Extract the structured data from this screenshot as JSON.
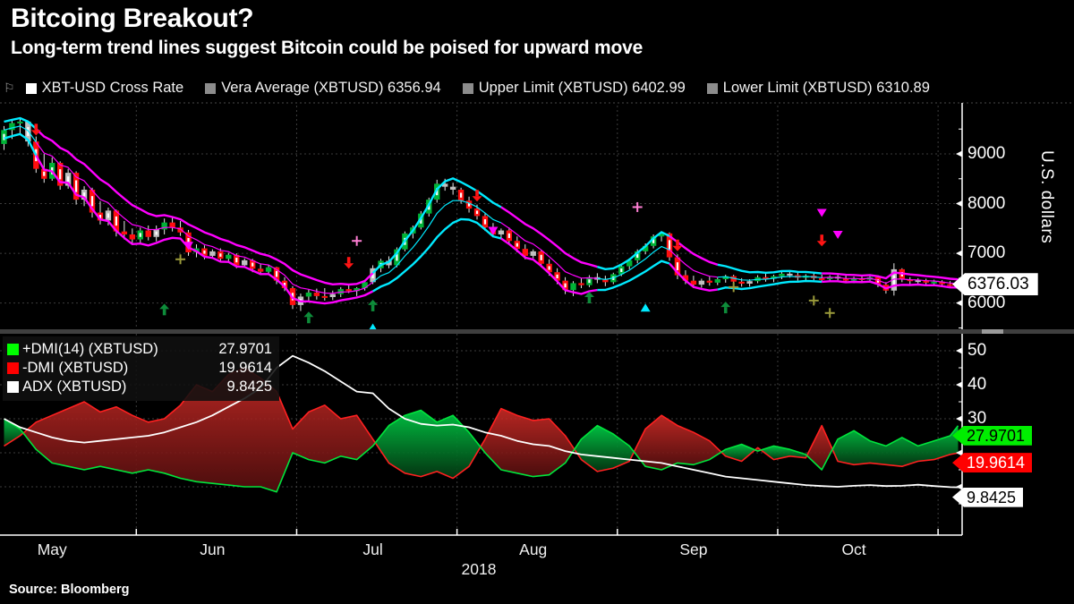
{
  "header": {
    "title": "Bitcoing Breakout?",
    "subtitle": "Long-term trend lines suggest Bitcoin could be poised for upward move"
  },
  "legend_top": {
    "items": [
      {
        "label": "XBT-USD Cross Rate",
        "swatch": "#ffffff"
      },
      {
        "label": "Vera Average (XBTUSD) 6356.94",
        "swatch": "#8c8c8c"
      },
      {
        "label": "Upper Limit (XBTUSD) 6402.99",
        "swatch": "#8c8c8c"
      },
      {
        "label": "Lower Limit (XBTUSD) 6310.89",
        "swatch": "#8c8c8c"
      }
    ]
  },
  "main_axis": {
    "label": "U.S. dollars",
    "last_price": "6376.03",
    "last_price_value": 6376.03
  },
  "lower_legend": {
    "rows": [
      {
        "label": "+DMI(14) (XBTUSD)",
        "value": "27.9701",
        "swatch": "#00ff00"
      },
      {
        "label": "-DMI (XBTUSD)",
        "value": "19.9614",
        "swatch": "#ff0000"
      },
      {
        "label": "ADX (XBTUSD)",
        "value": "9.8425",
        "swatch": "#ffffff"
      }
    ]
  },
  "lower_axis": {
    "badges": [
      {
        "text": "27.9701",
        "value": 27.9701,
        "bg": "#00ee00",
        "fg": "#000000"
      },
      {
        "text": "19.9614",
        "value": 19.9614,
        "bg": "#ff0000",
        "fg": "#ffffff"
      },
      {
        "text": "9.8425",
        "value": 9.8425,
        "bg": "#ffffff",
        "fg": "#000000"
      }
    ]
  },
  "x_axis": {
    "year": "2018"
  },
  "source": "Source:  Bloomberg",
  "chart_data": {
    "type": "candlestick+dmi",
    "main": {
      "ylim": [
        5470,
        9970
      ],
      "gridlines": [
        6000,
        7000,
        8000,
        9000
      ],
      "tick_labels": [
        9000,
        8000,
        7000,
        6000
      ],
      "minor_ticks": [
        9500,
        8500,
        7500,
        6500,
        5500
      ],
      "up_color": "#00b336",
      "down_color": "#ff0f0f",
      "neutral_color": "#c0c0c0",
      "candles": [
        [
          9200,
          9560,
          9080,
          9480
        ],
        [
          9480,
          9700,
          9300,
          9620
        ],
        [
          9620,
          9720,
          9380,
          9650
        ],
        [
          9650,
          9660,
          9150,
          9250
        ],
        [
          9250,
          9350,
          8620,
          8700
        ],
        [
          8700,
          9000,
          8420,
          8500
        ],
        [
          8500,
          8930,
          8460,
          8820
        ],
        [
          8820,
          8850,
          8280,
          8360
        ],
        [
          8360,
          8700,
          8300,
          8620
        ],
        [
          8620,
          8650,
          7980,
          8080
        ],
        [
          8080,
          8350,
          7950,
          8280
        ],
        [
          8280,
          8320,
          7720,
          7820
        ],
        [
          7820,
          8050,
          7580,
          7660
        ],
        [
          7660,
          7920,
          7560,
          7860
        ],
        [
          7860,
          7880,
          7340,
          7440
        ],
        [
          7440,
          7650,
          7280,
          7380
        ],
        [
          7380,
          7500,
          7200,
          7280
        ],
        [
          7280,
          7520,
          7180,
          7460
        ],
        [
          7460,
          7560,
          7260,
          7330
        ],
        [
          7330,
          7560,
          7240,
          7480
        ],
        [
          7480,
          7700,
          7380,
          7620
        ],
        [
          7620,
          7720,
          7440,
          7520
        ],
        [
          7520,
          7650,
          7350,
          7420
        ],
        [
          7420,
          7470,
          6950,
          7020
        ],
        [
          7020,
          7180,
          6920,
          7100
        ],
        [
          7100,
          7160,
          6880,
          6950
        ],
        [
          6950,
          7080,
          6900,
          7040
        ],
        [
          7040,
          7100,
          6820,
          6890
        ],
        [
          6890,
          7010,
          6840,
          6970
        ],
        [
          6970,
          7000,
          6700,
          6760
        ],
        [
          6760,
          6900,
          6710,
          6860
        ],
        [
          6860,
          6890,
          6620,
          6690
        ],
        [
          6690,
          6780,
          6560,
          6630
        ],
        [
          6630,
          6760,
          6590,
          6720
        ],
        [
          6720,
          6730,
          6380,
          6450
        ],
        [
          6450,
          6520,
          6240,
          6300
        ],
        [
          6300,
          6340,
          5880,
          5960
        ],
        [
          5960,
          6190,
          5840,
          6130
        ],
        [
          6130,
          6270,
          6030,
          6210
        ],
        [
          6210,
          6290,
          6070,
          6140
        ],
        [
          6140,
          6300,
          6050,
          6120
        ],
        [
          6120,
          6250,
          6060,
          6180
        ],
        [
          6180,
          6320,
          6120,
          6280
        ],
        [
          6280,
          6380,
          6200,
          6240
        ],
        [
          6240,
          6320,
          6140,
          6300
        ],
        [
          6300,
          6450,
          6250,
          6420
        ],
        [
          6420,
          6760,
          6380,
          6700
        ],
        [
          6700,
          6890,
          6620,
          6850
        ],
        [
          6850,
          6940,
          6700,
          6760
        ],
        [
          6760,
          7120,
          6720,
          7080
        ],
        [
          7080,
          7440,
          7040,
          7400
        ],
        [
          7400,
          7560,
          7300,
          7520
        ],
        [
          7520,
          7850,
          7480,
          7800
        ],
        [
          7800,
          8120,
          7740,
          8080
        ],
        [
          8080,
          8480,
          8020,
          8400
        ],
        [
          8400,
          8500,
          8260,
          8340
        ],
        [
          8340,
          8420,
          8180,
          8280
        ],
        [
          8280,
          8320,
          8000,
          8060
        ],
        [
          8060,
          8140,
          7820,
          7900
        ],
        [
          7900,
          7980,
          7680,
          7750
        ],
        [
          7750,
          7820,
          7450,
          7520
        ],
        [
          7520,
          7610,
          7320,
          7380
        ],
        [
          7380,
          7500,
          7300,
          7460
        ],
        [
          7460,
          7520,
          7180,
          7250
        ],
        [
          7250,
          7340,
          7020,
          7090
        ],
        [
          7090,
          7180,
          6880,
          6950
        ],
        [
          6950,
          7080,
          6900,
          7040
        ],
        [
          7040,
          7060,
          6720,
          6790
        ],
        [
          6790,
          6880,
          6550,
          6620
        ],
        [
          6620,
          6700,
          6380,
          6450
        ],
        [
          6450,
          6520,
          6180,
          6260
        ],
        [
          6260,
          6440,
          6140,
          6400
        ],
        [
          6400,
          6500,
          6300,
          6360
        ],
        [
          6360,
          6560,
          6320,
          6520
        ],
        [
          6520,
          6600,
          6400,
          6470
        ],
        [
          6470,
          6550,
          6340,
          6420
        ],
        [
          6420,
          6610,
          6380,
          6580
        ],
        [
          6580,
          6780,
          6540,
          6740
        ],
        [
          6740,
          6900,
          6680,
          6860
        ],
        [
          6860,
          7080,
          6800,
          7040
        ],
        [
          7040,
          7200,
          6980,
          7150
        ],
        [
          7150,
          7380,
          7100,
          7340
        ],
        [
          7340,
          7440,
          7240,
          7400
        ],
        [
          7400,
          7420,
          6850,
          6920
        ],
        [
          6920,
          6980,
          6480,
          6560
        ],
        [
          6560,
          6660,
          6380,
          6450
        ],
        [
          6450,
          6550,
          6300,
          6370
        ],
        [
          6370,
          6490,
          6310,
          6450
        ],
        [
          6450,
          6530,
          6350,
          6410
        ],
        [
          6410,
          6510,
          6360,
          6480
        ],
        [
          6480,
          6570,
          6410,
          6540
        ],
        [
          6540,
          6570,
          6380,
          6430
        ],
        [
          6430,
          6500,
          6330,
          6390
        ],
        [
          6390,
          6480,
          6330,
          6440
        ],
        [
          6440,
          6560,
          6400,
          6520
        ],
        [
          6520,
          6590,
          6430,
          6490
        ],
        [
          6490,
          6570,
          6420,
          6540
        ],
        [
          6540,
          6630,
          6480,
          6590
        ],
        [
          6590,
          6650,
          6510,
          6560
        ],
        [
          6560,
          6620,
          6450,
          6510
        ],
        [
          6510,
          6580,
          6440,
          6550
        ],
        [
          6550,
          6600,
          6460,
          6500
        ],
        [
          6500,
          6570,
          6430,
          6480
        ],
        [
          6480,
          6560,
          6420,
          6530
        ],
        [
          6530,
          6580,
          6460,
          6500
        ],
        [
          6500,
          6550,
          6410,
          6450
        ],
        [
          6450,
          6530,
          6400,
          6500
        ],
        [
          6500,
          6540,
          6420,
          6470
        ],
        [
          6470,
          6550,
          6430,
          6520
        ],
        [
          6520,
          6560,
          6320,
          6370
        ],
        [
          6370,
          6420,
          6190,
          6250
        ],
        [
          6250,
          6800,
          6150,
          6680
        ],
        [
          6680,
          6700,
          6420,
          6480
        ],
        [
          6480,
          6520,
          6380,
          6440
        ],
        [
          6440,
          6500,
          6390,
          6460
        ],
        [
          6460,
          6490,
          6370,
          6410
        ],
        [
          6410,
          6470,
          6350,
          6430
        ],
        [
          6430,
          6460,
          6340,
          6380
        ],
        [
          6380,
          6440,
          6300,
          6350
        ],
        [
          6350,
          6420,
          6310,
          6376
        ]
      ],
      "gray_indices": [
        3,
        8,
        10,
        13,
        19,
        26,
        30,
        37,
        41,
        46,
        48,
        55,
        56,
        62,
        66,
        74,
        87,
        93,
        98,
        104,
        111,
        114
      ],
      "band": {
        "magenta": "#ff00ff",
        "cyan": "#00eaff",
        "segments": [
          [
            0,
            3,
            "#00eaff"
          ],
          [
            4,
            45,
            "#ff00ff"
          ],
          [
            46,
            61,
            "#00eaff"
          ],
          [
            62,
            73,
            "#ff00ff"
          ],
          [
            74,
            82,
            "#00eaff"
          ],
          [
            83,
            88,
            "#ff00ff"
          ],
          [
            89,
            101,
            "#00eaff"
          ],
          [
            102,
            119,
            "#ff00ff"
          ]
        ]
      },
      "markers": {
        "arrow_down": {
          "color": "#ff1414",
          "points": [
            [
              4,
              9480
            ],
            [
              43,
              6800
            ],
            [
              59,
              8150
            ],
            [
              84,
              7150
            ],
            [
              102,
              7250
            ]
          ]
        },
        "arrow_up": {
          "color": "#0e8c3a",
          "points": [
            [
              20,
              5880
            ],
            [
              38,
              5720
            ],
            [
              46,
              5960
            ],
            [
              73,
              6120
            ],
            [
              90,
              5920
            ]
          ]
        },
        "triangle_down": {
          "color": "#ff00ff",
          "points": [
            [
              23,
              7160
            ],
            [
              61,
              7460
            ],
            [
              102,
              7820
            ],
            [
              104,
              7380
            ]
          ]
        },
        "triangle_up": {
          "color": "#00eaff",
          "points": [
            [
              46,
              5500
            ],
            [
              80,
              5900
            ]
          ]
        },
        "plus_olive": {
          "color": "#9a9a3a",
          "points": [
            [
              22,
              6880
            ],
            [
              91,
              6320
            ],
            [
              101,
              6050
            ],
            [
              103,
              5800
            ]
          ]
        },
        "plus_pink": {
          "color": "#ff7fd4",
          "points": [
            [
              44,
              7250
            ],
            [
              79,
              7930
            ]
          ]
        }
      }
    },
    "lower": {
      "ylim": [
        -3,
        55
      ],
      "gridlines": [
        10,
        20,
        30,
        40,
        50
      ],
      "tick_labels": [
        50,
        40,
        30
      ],
      "minor_ticks": [
        45,
        35,
        25,
        15,
        5
      ],
      "sample_stride": 2,
      "plus_dmi": [
        30,
        27,
        21,
        17,
        16,
        15,
        16,
        15,
        14,
        15,
        14,
        12.5,
        11.5,
        11,
        10.5,
        10,
        10,
        8.5,
        20,
        18,
        17,
        19,
        18,
        22,
        28,
        31,
        32.5,
        29,
        31,
        26,
        20,
        15,
        14,
        13,
        13.5,
        17,
        24,
        28,
        25.5,
        22,
        16,
        15,
        17,
        16.5,
        18,
        21,
        22.5,
        20.5,
        22,
        21,
        19.5,
        15,
        24,
        26.5,
        23.5,
        22,
        24.5,
        22,
        23.5,
        25
      ],
      "minus_dmi": [
        22,
        25,
        29,
        31,
        33,
        35,
        32,
        33.5,
        31,
        29,
        30,
        34,
        40,
        38,
        43,
        45,
        42,
        38,
        27,
        32,
        34,
        30,
        31,
        24,
        17,
        14,
        13,
        14.5,
        12.5,
        16,
        24,
        33,
        31,
        29.5,
        30,
        25,
        18,
        14.5,
        15.5,
        17.5,
        27,
        31,
        28,
        26,
        23.5,
        19,
        17.5,
        21.5,
        18,
        19,
        18.5,
        28,
        17.5,
        16.5,
        17,
        16.5,
        16,
        17.5,
        18,
        19.5
      ],
      "adx": [
        30,
        27.5,
        26,
        24.5,
        23.5,
        23,
        23.5,
        24,
        24.5,
        25,
        26,
        27.5,
        29,
        31,
        33.5,
        36,
        39,
        45,
        48.5,
        46.5,
        44,
        41,
        38,
        37.5,
        33,
        30,
        28.5,
        28,
        28.3,
        27.5,
        26,
        25,
        23.5,
        22.5,
        22,
        20.5,
        19.5,
        19,
        18.5,
        18,
        17.5,
        17,
        16,
        15,
        14,
        13,
        12.5,
        12,
        11.5,
        11,
        10.5,
        10.2,
        10,
        10.3,
        10.5,
        10.2,
        10.3,
        10.6,
        10.2,
        9.9
      ],
      "final": {
        "plus": 27.9701,
        "minus": 19.9614,
        "adx": 9.8425
      },
      "plus_color": "#00e53c",
      "minus_color": "#ff2020",
      "adx_color": "#ffffff"
    },
    "x": {
      "n": 120,
      "months": [
        "May",
        "Jun",
        "Jul",
        "Aug",
        "Sep",
        "Oct"
      ],
      "month_label_idx": [
        6,
        26,
        46,
        66,
        86,
        106
      ],
      "month_tick_idx": [
        16.5,
        36.5,
        56.5,
        76.5,
        96.5,
        116.5
      ]
    }
  }
}
